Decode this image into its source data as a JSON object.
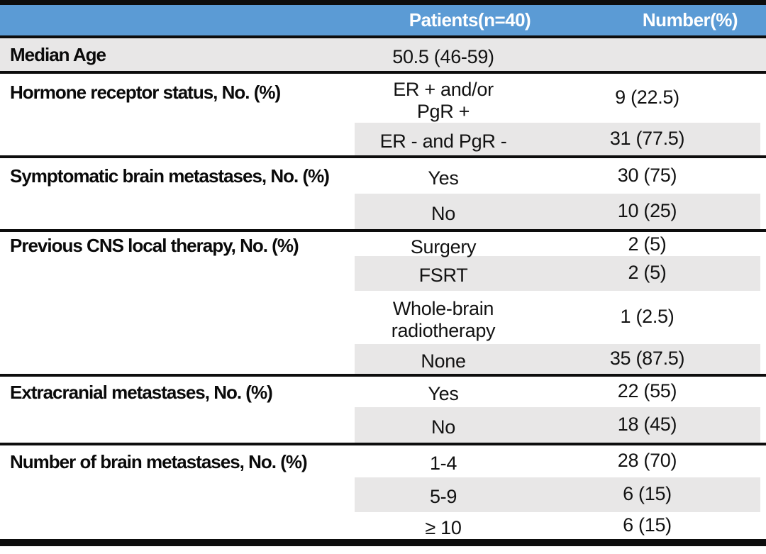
{
  "table": {
    "title": "Patient characteristics table",
    "header": {
      "col1": "",
      "col2": "Patients(n=40)",
      "col3": "Number(%)"
    },
    "rows": [
      {
        "label": "Median Age",
        "value": "50.5 (46-59)",
        "number": ""
      },
      {
        "label": "Hormone receptor status, No. (%)",
        "value": "ER + and/or\nPgR +",
        "number": "9 (22.5)"
      },
      {
        "label": "",
        "value": "ER - and PgR -",
        "number": "31 (77.5)"
      },
      {
        "label": "Symptomatic brain metastases, No. (%)",
        "value": "Yes",
        "number": "30 (75)"
      },
      {
        "label": "",
        "value": "No",
        "number": "10 (25)"
      },
      {
        "label": "Previous CNS local therapy, No. (%)",
        "value": "Surgery",
        "number": "2 (5)"
      },
      {
        "label": "",
        "value": "FSRT",
        "number": "2 (5)"
      },
      {
        "label": "",
        "value": "Whole-brain\nradiotherapy",
        "number": "1 (2.5)"
      },
      {
        "label": "",
        "value": "None",
        "number": "35 (87.5)"
      },
      {
        "label": "Extracranial metastases, No. (%)",
        "value": "Yes",
        "number": "22 (55)"
      },
      {
        "label": "",
        "value": "No",
        "number": "18 (45)"
      },
      {
        "label": "Number of brain metastases, No. (%)",
        "value": "1-4",
        "number": "28 (70)"
      },
      {
        "label": "",
        "value": "5-9",
        "number": "6 (15)"
      },
      {
        "label": "",
        "value": "≥ 10",
        "number": "6 (15)"
      }
    ],
    "colors": {
      "header_bg": "#5B9BD5",
      "header_text": "#FFFFFF",
      "shade": "#E8E7E7",
      "line": "#0D0D0D"
    }
  }
}
